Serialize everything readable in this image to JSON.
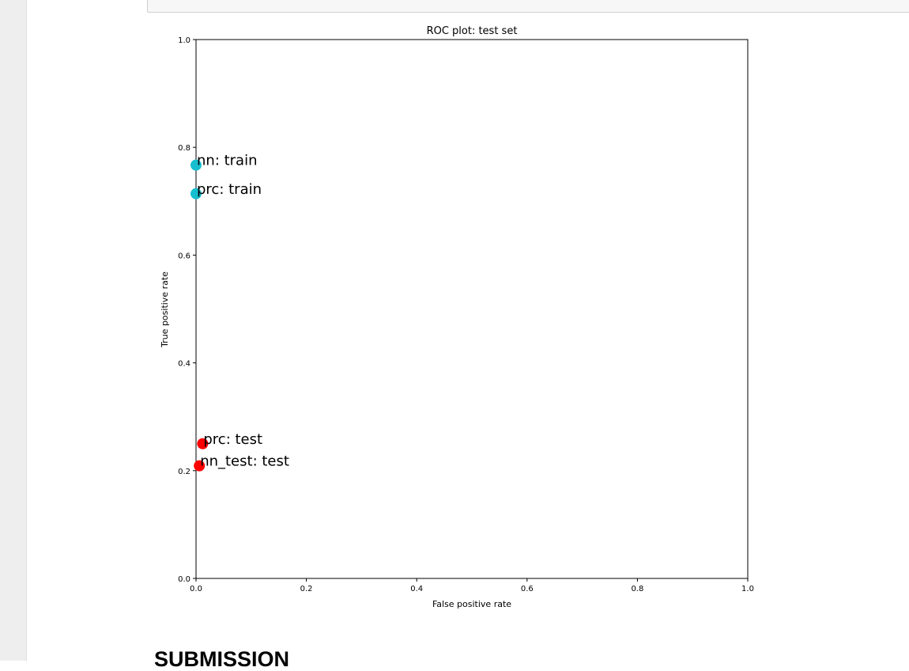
{
  "section": {
    "heading": "SUBMISSION"
  },
  "chart_data": {
    "type": "scatter",
    "title": "ROC plot: test set",
    "xlabel": "False positive rate",
    "ylabel": "True positive rate",
    "xlim": [
      0,
      1
    ],
    "ylim": [
      0,
      1
    ],
    "xticks": [
      "0.0",
      "0.2",
      "0.4",
      "0.6",
      "0.8",
      "1.0"
    ],
    "yticks": [
      "0.0",
      "0.2",
      "0.4",
      "0.6",
      "0.8",
      "1.0"
    ],
    "grid": false,
    "points": [
      {
        "label": "nn: train",
        "x": 0.0,
        "y": 0.767,
        "color": "#17becf"
      },
      {
        "label": "prc: train",
        "x": 0.0,
        "y": 0.714,
        "color": "#17becf"
      },
      {
        "label": "prc: test",
        "x": 0.012,
        "y": 0.25,
        "color": "#ff0000"
      },
      {
        "label": "nn_test: test",
        "x": 0.006,
        "y": 0.209,
        "color": "#ff0000"
      }
    ]
  }
}
